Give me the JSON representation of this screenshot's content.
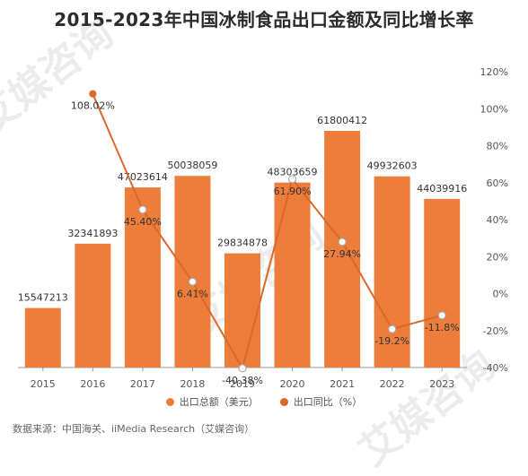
{
  "title": "2015-2023年中国冰制食品出口金额及同比增长率",
  "watermark": "艾媒咨询",
  "source": "数据来源：中国海关、iiMedia Research（艾媒咨询）",
  "colors": {
    "bar": "#ED7D3A",
    "line": "#D9692A",
    "grid": "#e6e6e6"
  },
  "chart_data": {
    "type": "bar",
    "categories": [
      "2015",
      "2016",
      "2017",
      "2018",
      "2019",
      "2020",
      "2021",
      "2022",
      "2023"
    ],
    "series": [
      {
        "name": "出口总额（美元）",
        "type": "bar",
        "axis": "left",
        "values": [
          15547213,
          32341893,
          47023614,
          50038059,
          29834878,
          48303659,
          61800412,
          49932603,
          44039916
        ],
        "labels": [
          "15547213",
          "32341893",
          "47023614",
          "50038059",
          "29834878",
          "48303659",
          "61800412",
          "49932603",
          "44039916"
        ]
      },
      {
        "name": "出口同比（%）",
        "type": "line",
        "axis": "right",
        "values": [
          null,
          108.02,
          45.4,
          6.41,
          -40.38,
          61.9,
          27.94,
          -19.2,
          -11.8
        ],
        "labels": [
          "",
          "108.02%",
          "45.40%",
          "6.41%",
          "-40.38%",
          "61.90%",
          "27.94%",
          "-19.2%",
          "-11.8%"
        ]
      }
    ],
    "y_left_range": [
      0,
      77250515
    ],
    "y_right": {
      "ticks": [
        "120%",
        "100%",
        "80%",
        "60%",
        "40%",
        "20%",
        "0%",
        "-20%",
        "-40%"
      ],
      "range": [
        -40,
        120
      ]
    },
    "grid": false,
    "legend_position": "bottom"
  }
}
